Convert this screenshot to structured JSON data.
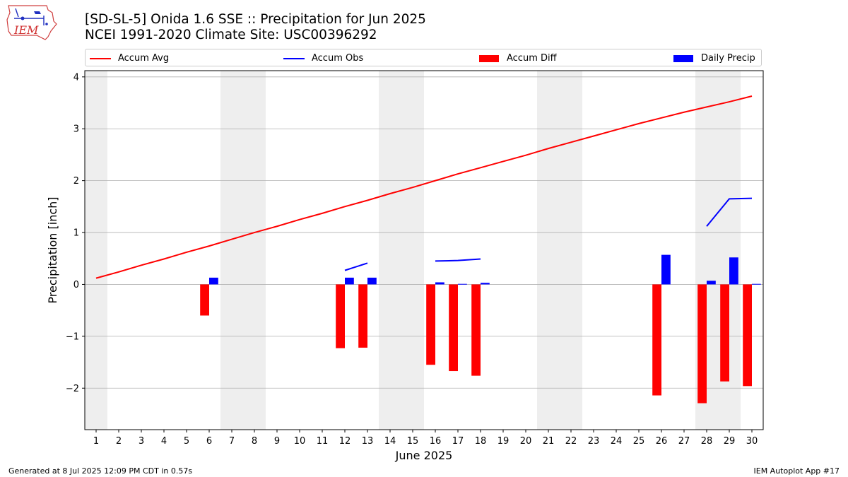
{
  "header": {
    "title_line1": "[SD-SL-5] Onida 1.6 SSE :: Precipitation for Jun 2025",
    "title_line2": "NCEI 1991-2020 Climate Site: USC00396292",
    "logo_text": "IEM"
  },
  "footer": {
    "left": "Generated at 8 Jul 2025 12:09 PM CDT in 0.57s",
    "right": "IEM Autoplot App #17"
  },
  "colors": {
    "accum_avg": "#ff0000",
    "accum_obs": "#0000ff",
    "accum_diff": "#ff0000",
    "daily_precip": "#0000ff",
    "weekend_shade": "#eeeeee",
    "grid": "#b0b0b0"
  },
  "chart_data": {
    "type": "bar",
    "xlabel": "June 2025",
    "ylabel": "Precipitation [inch]",
    "xlim": [
      0.5,
      30.5
    ],
    "ylim": [
      -2.8,
      4.12
    ],
    "yticks": [
      -2,
      -1,
      0,
      1,
      2,
      3,
      4
    ],
    "ytick_labels": [
      "−2",
      "−1",
      "0",
      "1",
      "2",
      "3",
      "4"
    ],
    "grid": "horizontal",
    "legend_position": "top",
    "days": [
      1,
      2,
      3,
      4,
      5,
      6,
      7,
      8,
      9,
      10,
      11,
      12,
      13,
      14,
      15,
      16,
      17,
      18,
      19,
      20,
      21,
      22,
      23,
      24,
      25,
      26,
      27,
      28,
      29,
      30
    ],
    "shaded_weekend_spans": [
      [
        0.5,
        1.5
      ],
      [
        6.5,
        8.5
      ],
      [
        13.5,
        15.5
      ],
      [
        20.5,
        22.5
      ],
      [
        27.5,
        29.5
      ]
    ],
    "series": [
      {
        "name": "Accum Avg",
        "kind": "line",
        "x": [
          1,
          2,
          3,
          4,
          5,
          6,
          7,
          8,
          9,
          10,
          11,
          12,
          13,
          14,
          15,
          16,
          17,
          18,
          19,
          20,
          21,
          22,
          23,
          24,
          25,
          26,
          27,
          28,
          29,
          30
        ],
        "values": [
          0.12,
          0.24,
          0.37,
          0.49,
          0.62,
          0.74,
          0.87,
          1.0,
          1.12,
          1.25,
          1.37,
          1.5,
          1.62,
          1.75,
          1.87,
          2.0,
          2.13,
          2.25,
          2.37,
          2.49,
          2.62,
          2.74,
          2.86,
          2.98,
          3.1,
          3.21,
          3.32,
          3.42,
          3.52,
          3.63
        ]
      },
      {
        "name": "Accum Obs",
        "kind": "line",
        "segments": [
          {
            "x": [
              12,
              13
            ],
            "values": [
              0.27,
              0.41
            ]
          },
          {
            "x": [
              16,
              17,
              18
            ],
            "values": [
              0.45,
              0.46,
              0.49
            ]
          },
          {
            "x": [
              28,
              29,
              30
            ],
            "values": [
              1.12,
              1.65,
              1.66
            ]
          }
        ]
      },
      {
        "name": "Accum Diff",
        "kind": "bar",
        "x": [
          6,
          12,
          13,
          16,
          17,
          18,
          26,
          28,
          29,
          30
        ],
        "values": [
          -0.6,
          -1.23,
          -1.22,
          -1.55,
          -1.67,
          -1.76,
          -2.14,
          -2.29,
          -1.87,
          -1.96
        ]
      },
      {
        "name": "Daily Precip",
        "kind": "bar",
        "x": [
          6,
          12,
          13,
          16,
          17,
          18,
          26,
          28,
          29,
          30
        ],
        "values": [
          0.13,
          0.13,
          0.13,
          0.04,
          0.01,
          0.03,
          0.57,
          0.07,
          0.52,
          0.01
        ]
      }
    ]
  }
}
